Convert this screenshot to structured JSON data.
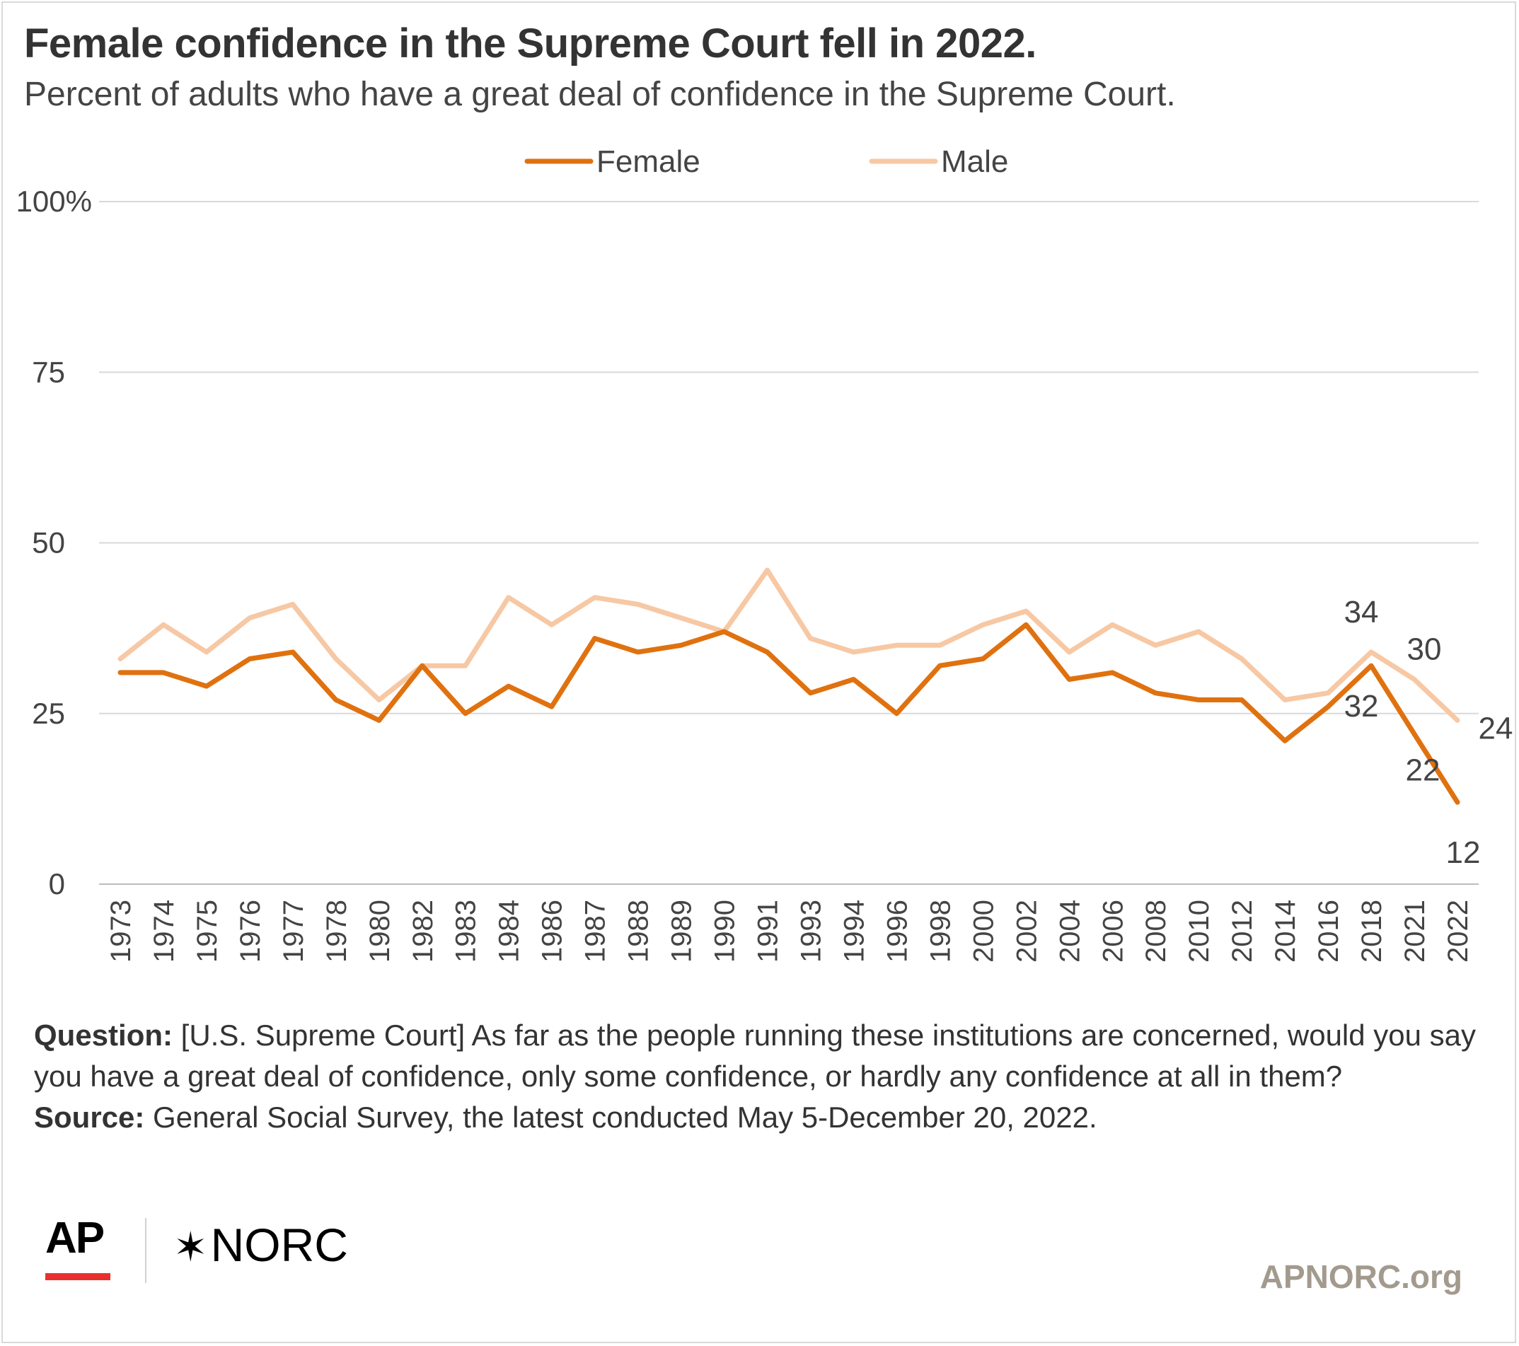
{
  "header": {
    "title": "Female confidence in the Supreme Court fell in 2022.",
    "subtitle": "Percent of adults who have a great deal of confidence in the Supreme Court."
  },
  "colors": {
    "female": "#e0710f",
    "male": "#f7c8a4",
    "grid": "#d9d9d9",
    "axis_text": "#444444"
  },
  "chart_data": {
    "type": "line",
    "x": [
      "1973",
      "1974",
      "1975",
      "1976",
      "1977",
      "1978",
      "1980",
      "1982",
      "1983",
      "1984",
      "1986",
      "1987",
      "1988",
      "1989",
      "1990",
      "1991",
      "1993",
      "1994",
      "1996",
      "1998",
      "2000",
      "2002",
      "2004",
      "2006",
      "2008",
      "2010",
      "2012",
      "2014",
      "2016",
      "2018",
      "2021",
      "2022"
    ],
    "series": [
      {
        "name": "Female",
        "color": "#e0710f",
        "values": [
          31,
          31,
          29,
          33,
          34,
          27,
          24,
          32,
          25,
          29,
          26,
          36,
          34,
          35,
          37,
          34,
          28,
          30,
          25,
          32,
          33,
          38,
          30,
          31,
          28,
          27,
          27,
          21,
          26,
          32,
          22,
          12
        ]
      },
      {
        "name": "Male",
        "color": "#f7c8a4",
        "values": [
          33,
          38,
          34,
          39,
          41,
          33,
          27,
          32,
          32,
          42,
          38,
          42,
          41,
          39,
          37,
          46,
          36,
          34,
          35,
          35,
          38,
          40,
          34,
          38,
          35,
          37,
          33,
          27,
          28,
          34,
          30,
          24
        ]
      }
    ],
    "yticks": [
      "100%",
      "75",
      "50",
      "25",
      "0"
    ],
    "ytick_values": [
      100,
      75,
      50,
      25,
      0
    ],
    "ylim": [
      0,
      100
    ],
    "grid": true,
    "legend_position": "top-center",
    "data_labels": [
      {
        "series": "Male",
        "x": "2018",
        "text": "34"
      },
      {
        "series": "Male",
        "x": "2021",
        "text": "30"
      },
      {
        "series": "Male",
        "x": "2022",
        "text": "24"
      },
      {
        "series": "Female",
        "x": "2018",
        "text": "32"
      },
      {
        "series": "Female",
        "x": "2021",
        "text": "22"
      },
      {
        "series": "Female",
        "x": "2022",
        "text": "12"
      }
    ]
  },
  "notes": {
    "question_label": "Question:",
    "question_text": " [U.S. Supreme Court] As far as the people running these institutions are concerned, would you say you have a great deal of confidence, only some confidence, or hardly any confidence at all in them?",
    "source_label": "Source:",
    "source_text": " General Social Survey, the latest conducted May 5-December 20, 2022."
  },
  "footer": {
    "ap_logo": "AP",
    "norc_logo": "NORC",
    "norc_star": "✶",
    "site": "APNORC.org"
  }
}
